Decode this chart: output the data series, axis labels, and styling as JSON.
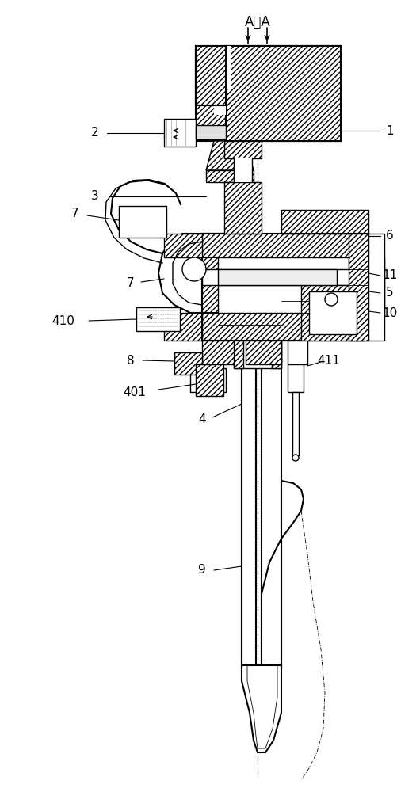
{
  "bg_color": "#ffffff",
  "line_color": "#000000",
  "figsize": [
    5.3,
    10.0
  ],
  "dpi": 100
}
